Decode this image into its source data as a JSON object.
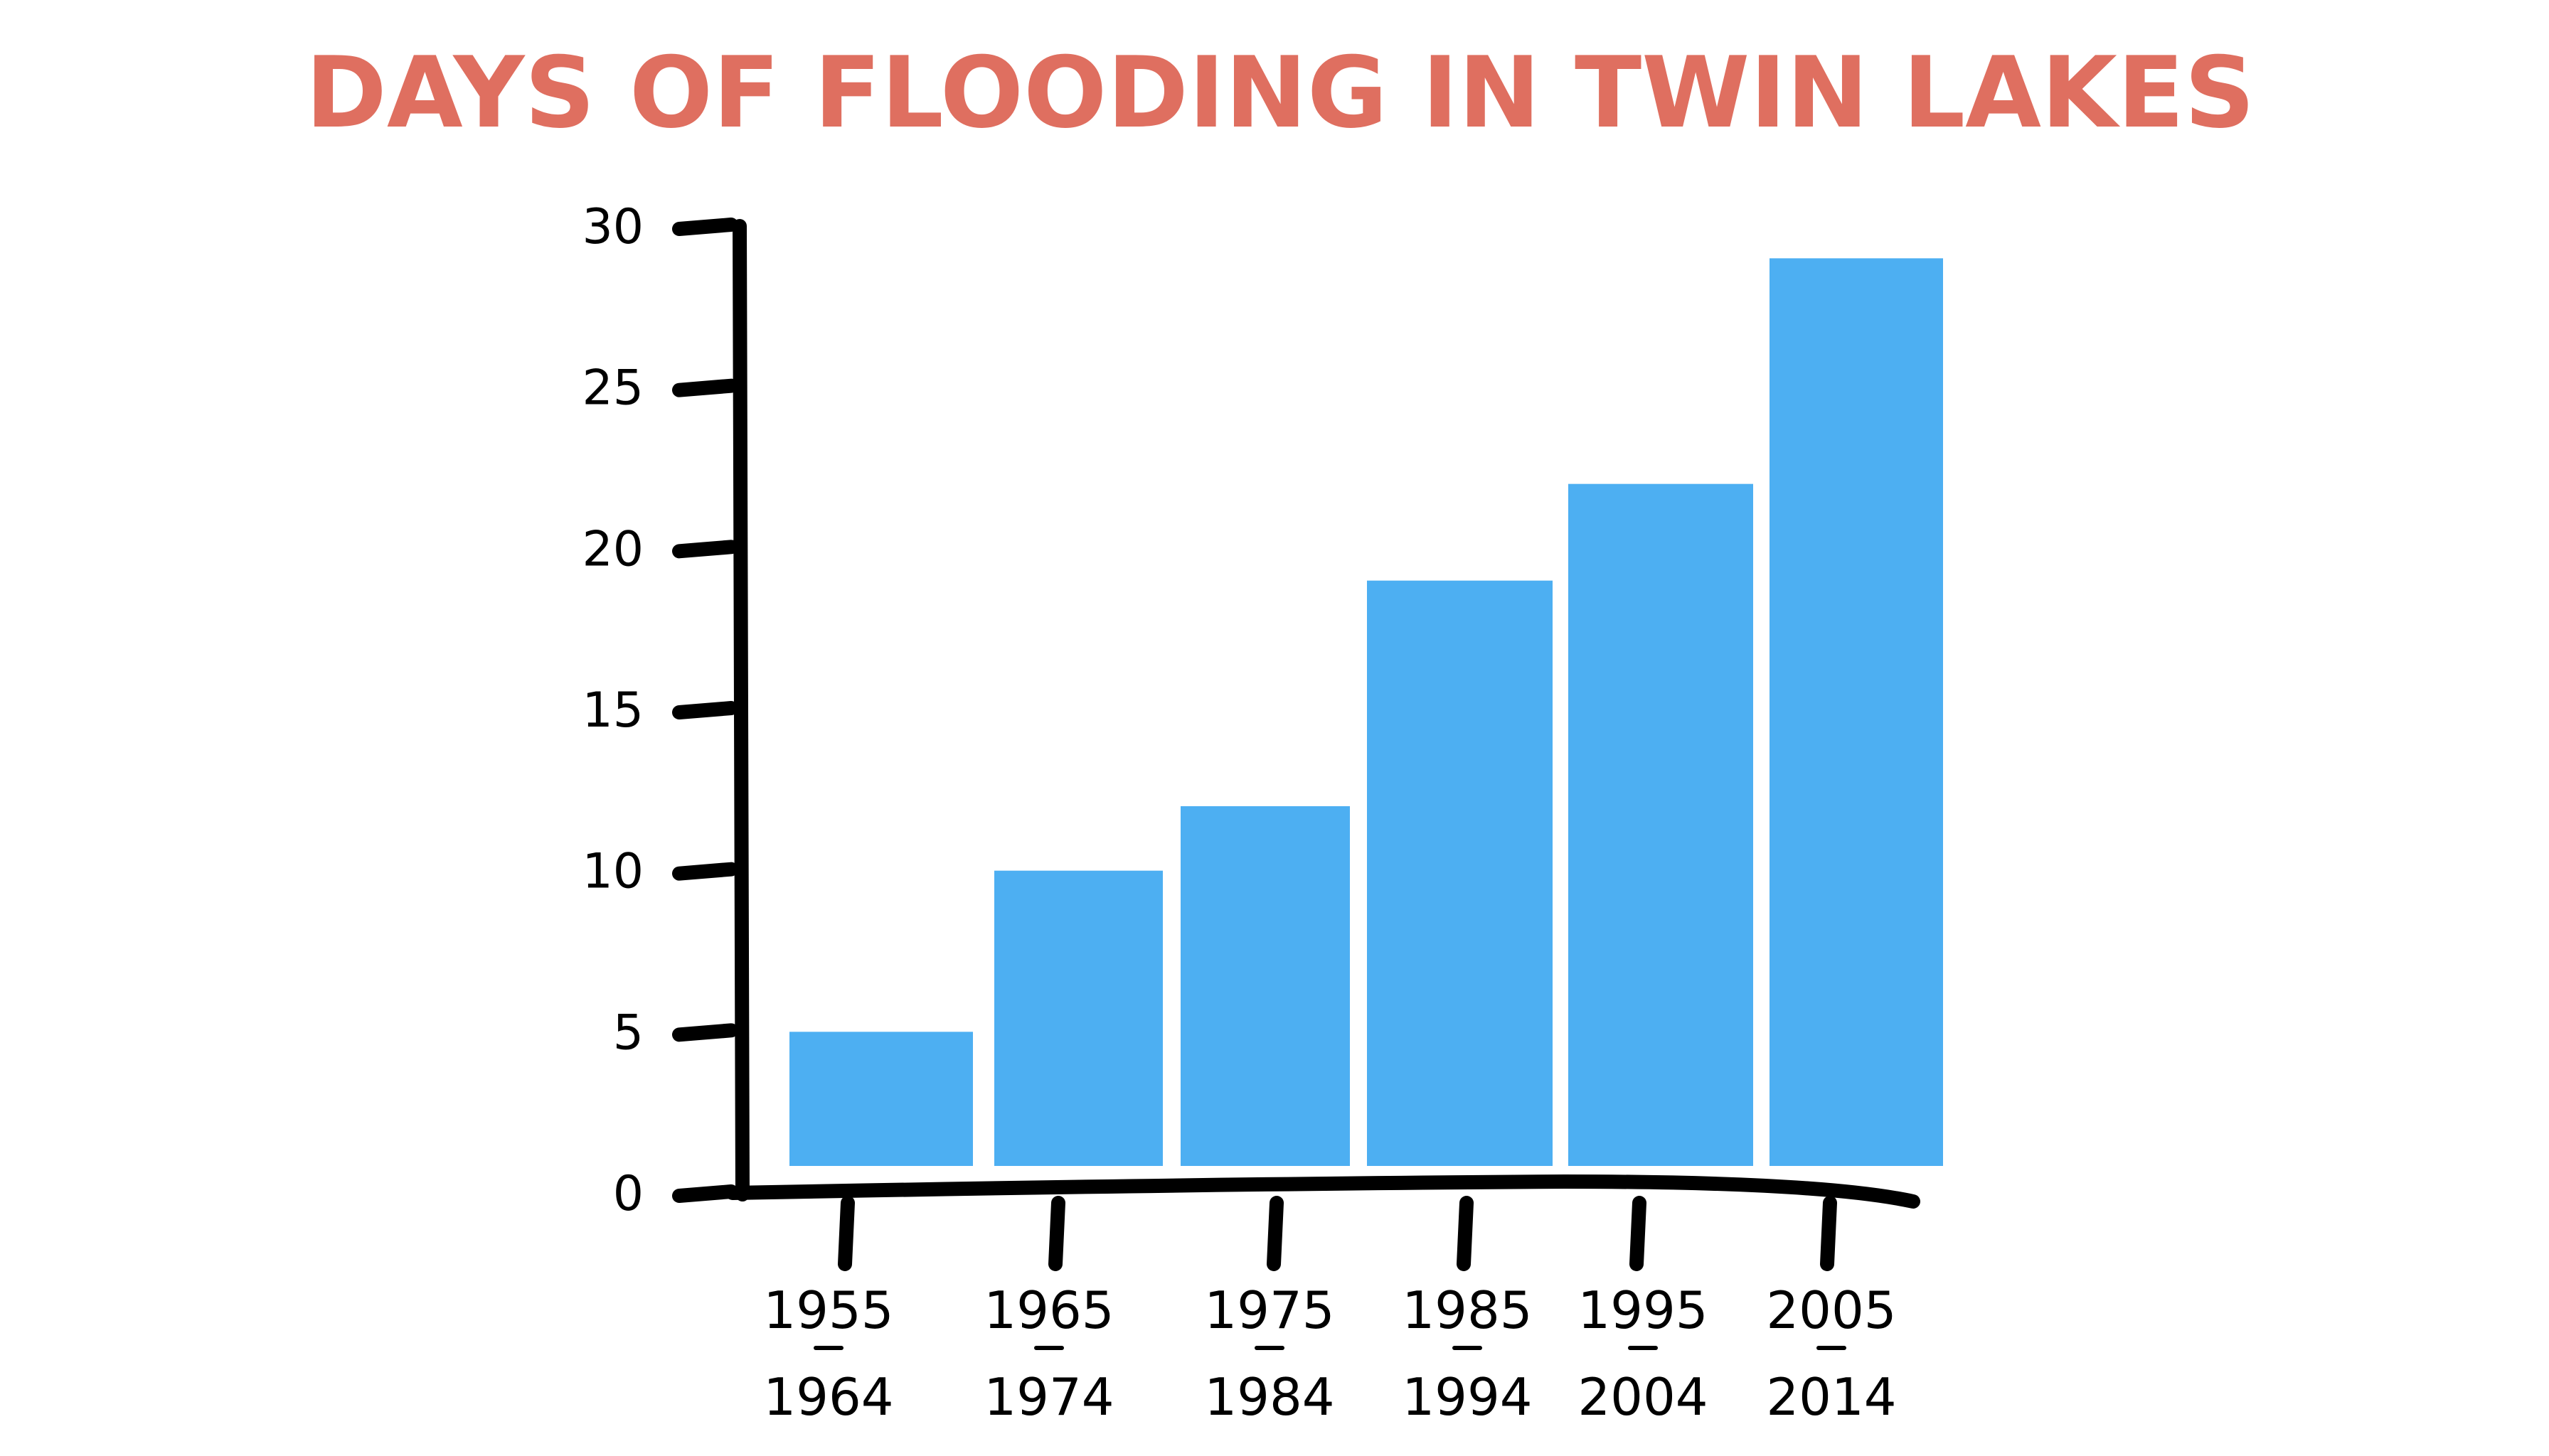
{
  "chart_data": {
    "type": "bar",
    "title": "DAYS OF FLOODING IN TWIN LAKES",
    "xlabel": "",
    "ylabel": "",
    "categories": [
      {
        "line1": "1955",
        "line2": "1964"
      },
      {
        "line1": "1965",
        "line2": "1974"
      },
      {
        "line1": "1975",
        "line2": "1984"
      },
      {
        "line1": "1985",
        "line2": "1994"
      },
      {
        "line1": "1995",
        "line2": "2004"
      },
      {
        "line1": "2005",
        "line2": "2014"
      }
    ],
    "values": [
      4,
      9,
      11,
      18,
      21,
      28
    ],
    "ylim": [
      0,
      30
    ],
    "yticks": [
      0,
      5,
      10,
      15,
      20,
      25,
      30
    ],
    "bar_color": "#4DAFF2",
    "title_color": "#DF6F60",
    "axis_color": "#000000",
    "grid": false
  }
}
